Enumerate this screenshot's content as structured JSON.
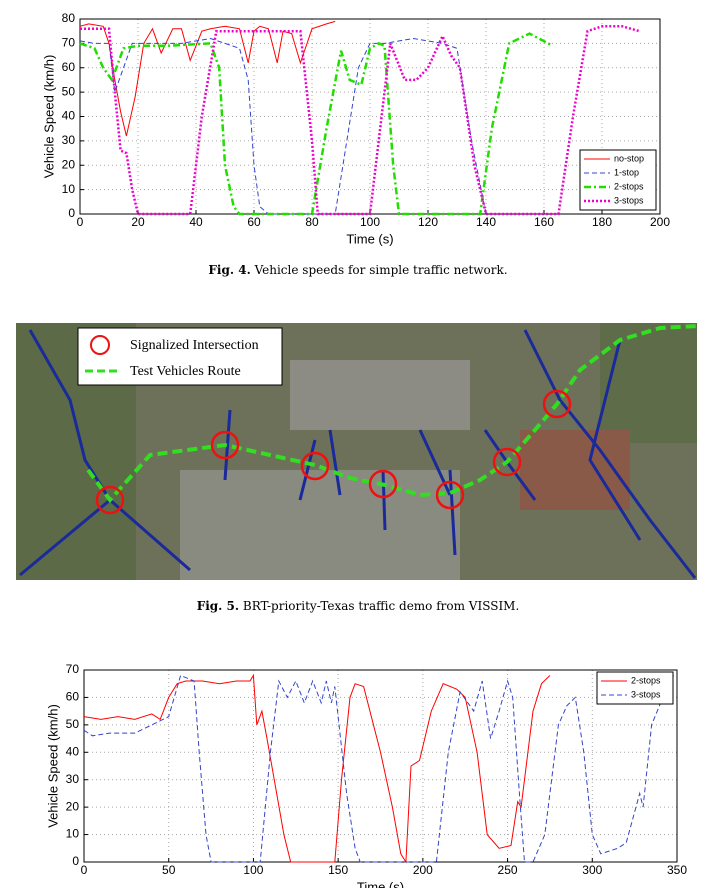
{
  "chart_data": [
    {
      "type": "line",
      "xlabel": "Time (s)",
      "ylabel": "Vehicle Speed (km/h)",
      "xlim": [
        0,
        200
      ],
      "ylim": [
        0,
        80
      ],
      "xticks": [
        0,
        20,
        40,
        60,
        80,
        100,
        120,
        140,
        160,
        180,
        200
      ],
      "yticks": [
        0,
        10,
        20,
        30,
        40,
        50,
        60,
        70,
        80
      ],
      "grid": true,
      "legend": "lower right",
      "series": [
        {
          "name": "no-stop",
          "color": "#ff0000",
          "style": "solid",
          "x": [
            0,
            3,
            8,
            10,
            12,
            14,
            16,
            19,
            22,
            25,
            28,
            32,
            35,
            38,
            42,
            45,
            50,
            55,
            58,
            60,
            62,
            65,
            68,
            70,
            73,
            76,
            80,
            85,
            88
          ],
          "values": [
            77,
            78,
            77,
            70,
            55,
            42,
            32,
            48,
            70,
            76,
            66,
            76,
            76,
            63,
            75,
            76,
            77,
            76,
            62,
            75,
            77,
            76,
            62,
            75,
            74,
            62,
            76,
            78,
            79
          ]
        },
        {
          "name": "1-stop",
          "color": "#3344cc",
          "style": "dashed",
          "x": [
            0,
            5,
            10,
            12,
            15,
            18,
            25,
            35,
            45,
            50,
            55,
            58,
            60,
            62,
            65,
            88,
            92,
            96,
            100,
            105,
            115,
            125,
            130,
            135,
            140
          ],
          "values": [
            71,
            70,
            70,
            50,
            60,
            70,
            70,
            70,
            72,
            70,
            68,
            55,
            20,
            3,
            0,
            0,
            30,
            60,
            70,
            70,
            72,
            70,
            68,
            30,
            0
          ]
        },
        {
          "name": "2-stops",
          "color": "#22dd00",
          "style": "dashdot",
          "x": [
            0,
            5,
            8,
            11,
            15,
            20,
            30,
            45,
            48,
            50,
            53,
            55,
            80,
            85,
            90,
            93,
            97,
            100,
            103,
            105,
            108,
            110,
            138,
            142,
            148,
            155,
            163
          ],
          "values": [
            70,
            68,
            60,
            55,
            68,
            69,
            69,
            70,
            60,
            20,
            3,
            0,
            0,
            35,
            67,
            55,
            53,
            68,
            70,
            69,
            20,
            0,
            0,
            35,
            70,
            74,
            69
          ]
        },
        {
          "name": "3-stops",
          "color": "#ee00cc",
          "style": "dotted",
          "x": [
            0,
            10,
            12,
            14,
            16,
            18,
            20,
            38,
            42,
            47,
            55,
            76,
            80,
            82,
            100,
            104,
            107,
            112,
            116,
            120,
            125,
            128,
            131,
            136,
            140,
            165,
            170,
            175,
            180,
            187,
            193
          ],
          "values": [
            76,
            76,
            50,
            26,
            25,
            10,
            0,
            0,
            40,
            75,
            75,
            75,
            30,
            0,
            0,
            40,
            70,
            55,
            55,
            60,
            73,
            65,
            60,
            20,
            0,
            0,
            40,
            75,
            77,
            77,
            75
          ]
        }
      ]
    },
    {
      "type": "line",
      "xlabel": "Time (s)",
      "ylabel": "Vehicle Speed (km/h)",
      "xlim": [
        0,
        350
      ],
      "ylim": [
        0,
        70
      ],
      "xticks": [
        0,
        50,
        100,
        150,
        200,
        250,
        300,
        350
      ],
      "yticks": [
        0,
        10,
        20,
        30,
        40,
        50,
        60,
        70
      ],
      "grid": true,
      "legend": "upper right",
      "series": [
        {
          "name": "2-stops",
          "color": "#ff0000",
          "style": "solid",
          "x": [
            0,
            10,
            20,
            30,
            40,
            45,
            50,
            55,
            60,
            70,
            80,
            90,
            98,
            100,
            102,
            105,
            108,
            110,
            118,
            122,
            148,
            152,
            157,
            160,
            165,
            175,
            182,
            187,
            190,
            193,
            198,
            205,
            212,
            220,
            225,
            232,
            238,
            245,
            252,
            256,
            258,
            265,
            270,
            275
          ],
          "values": [
            53,
            52,
            53,
            52,
            54,
            52,
            60,
            65,
            66,
            66,
            65,
            66,
            66,
            68,
            50,
            55,
            45,
            38,
            10,
            0,
            0,
            30,
            60,
            65,
            64,
            40,
            20,
            3,
            0,
            35,
            37,
            55,
            65,
            63,
            60,
            40,
            10,
            5,
            6,
            22,
            20,
            55,
            65,
            68
          ]
        },
        {
          "name": "3-stops",
          "color": "#3344cc",
          "style": "dashed",
          "x": [
            0,
            5,
            15,
            30,
            40,
            50,
            57,
            65,
            68,
            72,
            75,
            104,
            110,
            115,
            120,
            125,
            130,
            135,
            140,
            143,
            146,
            148,
            155,
            160,
            163,
            208,
            215,
            222,
            230,
            235,
            240,
            245,
            250,
            253,
            257,
            260,
            265,
            272,
            280,
            285,
            290,
            295,
            300,
            305,
            315,
            320,
            328,
            330,
            335,
            345,
            348
          ],
          "values": [
            48,
            46,
            47,
            47,
            50,
            53,
            68,
            66,
            40,
            10,
            0,
            0,
            40,
            66,
            60,
            66,
            58,
            66,
            58,
            66,
            58,
            64,
            25,
            5,
            0,
            0,
            40,
            62,
            55,
            66,
            45,
            55,
            66,
            60,
            25,
            0,
            0,
            10,
            50,
            57,
            60,
            40,
            10,
            3,
            5,
            7,
            25,
            20,
            50,
            65,
            68
          ]
        }
      ]
    }
  ],
  "captions": [
    {
      "label": "Fig. 4.",
      "text": "Vehicle speeds for simple traffic network."
    },
    {
      "label": "Fig. 5.",
      "text": "BRT-priority-Texas traffic demo from VISSIM."
    }
  ],
  "map_legend": [
    "Signalized Intersection",
    "Test Vehicles Route"
  ]
}
